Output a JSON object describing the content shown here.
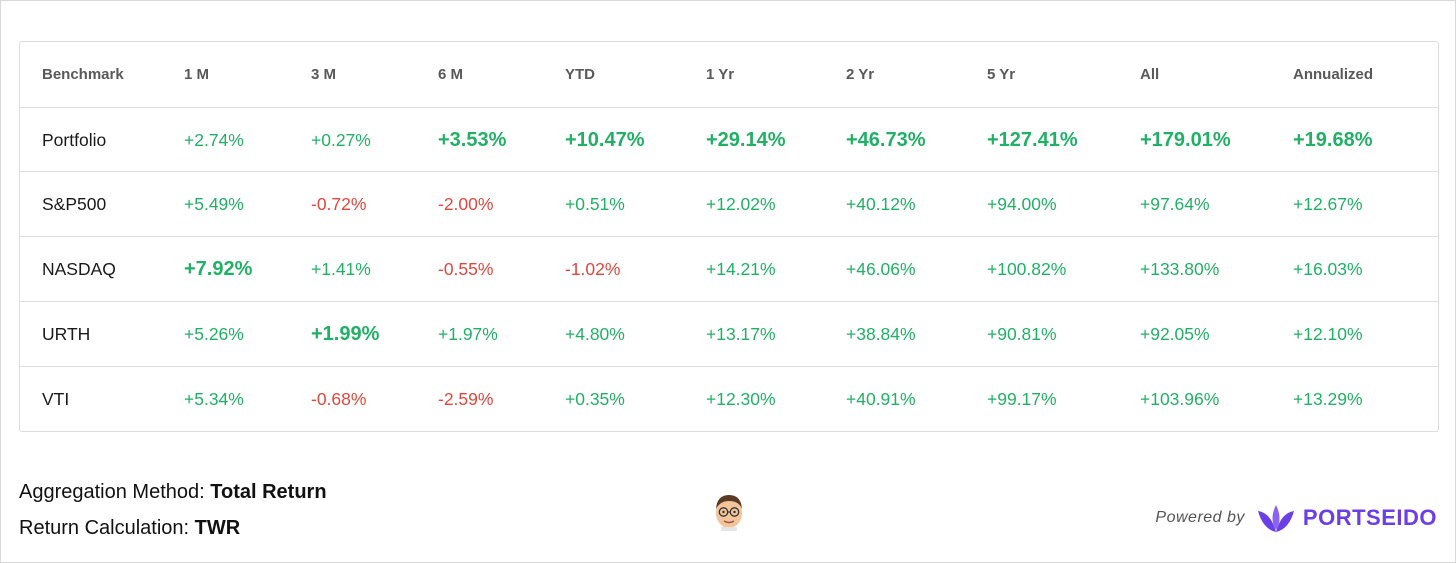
{
  "table": {
    "headers": [
      "Benchmark",
      "1 M",
      "3 M",
      "6 M",
      "YTD",
      "1 Yr",
      "2 Yr",
      "5 Yr",
      "All",
      "Annualized"
    ],
    "rows": [
      {
        "name": "Portfolio",
        "values": [
          "+2.74%",
          "+0.27%",
          "+3.53%",
          "+10.47%",
          "+29.14%",
          "+46.73%",
          "+127.41%",
          "+179.01%",
          "+19.68%"
        ]
      },
      {
        "name": "S&P500",
        "values": [
          "+5.49%",
          "-0.72%",
          "-2.00%",
          "+0.51%",
          "+12.02%",
          "+40.12%",
          "+94.00%",
          "+97.64%",
          "+12.67%"
        ]
      },
      {
        "name": "NASDAQ",
        "values": [
          "+7.92%",
          "+1.41%",
          "-0.55%",
          "-1.02%",
          "+14.21%",
          "+46.06%",
          "+100.82%",
          "+133.80%",
          "+16.03%"
        ]
      },
      {
        "name": "URTH",
        "values": [
          "+5.26%",
          "+1.99%",
          "+1.97%",
          "+4.80%",
          "+13.17%",
          "+38.84%",
          "+90.81%",
          "+92.05%",
          "+12.10%"
        ]
      },
      {
        "name": "VTI",
        "values": [
          "+5.34%",
          "-0.68%",
          "-2.59%",
          "+0.35%",
          "+12.30%",
          "+40.91%",
          "+99.17%",
          "+103.96%",
          "+13.29%"
        ]
      }
    ],
    "best_per_column": [
      "NASDAQ",
      "URTH",
      "Portfolio",
      "Portfolio",
      "Portfolio",
      "Portfolio",
      "Portfolio",
      "Portfolio",
      "Portfolio"
    ]
  },
  "footer": {
    "aggregation_label": "Aggregation Method:",
    "aggregation_value": "Total Return",
    "return_label": "Return Calculation:",
    "return_value": "TWR",
    "powered_by": "Powered by",
    "brand": "PORTSEIDO"
  },
  "colors": {
    "positive": "#22b066",
    "negative": "#e0473f",
    "brand": "#6b3fe6"
  },
  "icons": {
    "avatar": "memoji-avatar-icon",
    "logo": "portseido-leaf-logo-icon"
  }
}
